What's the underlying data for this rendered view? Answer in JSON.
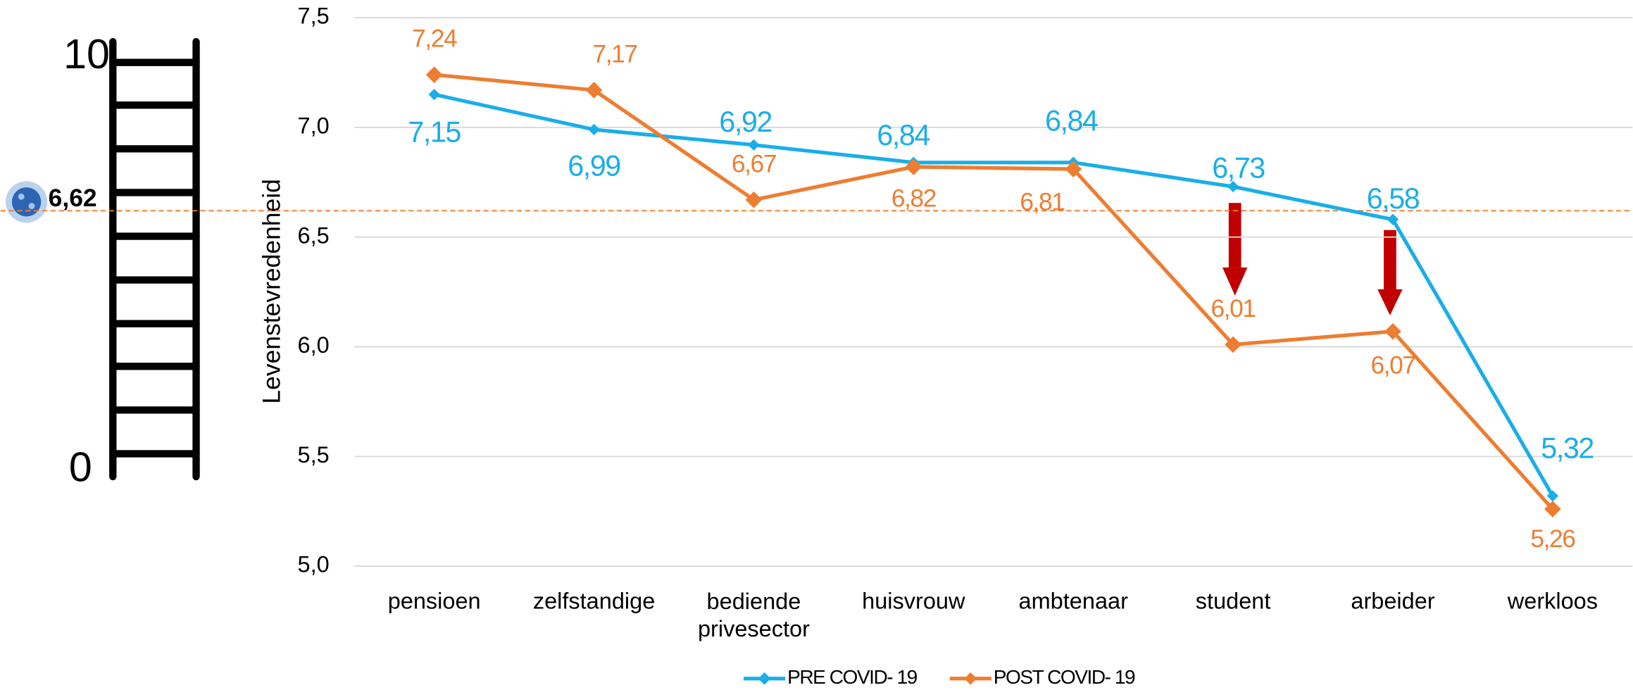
{
  "chart_data": {
    "type": "line",
    "ylabel": "Levenstevredenheid",
    "categories": [
      "pensioen",
      "zelfstandige",
      "bediende privesector",
      "huisvrouw",
      "ambtenaar",
      "student",
      "arbeider",
      "werkloos"
    ],
    "series": [
      {
        "name": "PRE COVID- 19",
        "color": "#1aaee8",
        "values": [
          7.15,
          6.99,
          6.92,
          6.84,
          6.84,
          6.73,
          6.58,
          5.32
        ],
        "value_labels": [
          "7,15",
          "6,99",
          "6,92",
          "6,84",
          "6,84",
          "6,73",
          "6,58",
          "5,32"
        ]
      },
      {
        "name": "POST COVID- 19",
        "color": "#ed7d31",
        "values": [
          7.24,
          7.17,
          6.67,
          6.82,
          6.81,
          6.01,
          6.07,
          5.26
        ],
        "value_labels": [
          "7,24",
          "7,17",
          "6,67",
          "6,82",
          "6,81",
          "6,01",
          "6,07",
          "5,26"
        ]
      }
    ],
    "ylim": [
      5.0,
      7.5
    ],
    "yticks": [
      {
        "value": 5.0,
        "label": "5,0"
      },
      {
        "value": 5.5,
        "label": "5,5"
      },
      {
        "value": 6.0,
        "label": "6,0"
      },
      {
        "value": 6.5,
        "label": "6,5"
      },
      {
        "value": 7.0,
        "label": "7,0"
      },
      {
        "value": 7.5,
        "label": "7,5"
      }
    ],
    "grid": true,
    "legend": "bottom",
    "reference_line": {
      "value": 6.62,
      "label": "6,62",
      "color": "#ed7d31"
    },
    "ladder": {
      "top": 10,
      "bottom": 0
    }
  }
}
